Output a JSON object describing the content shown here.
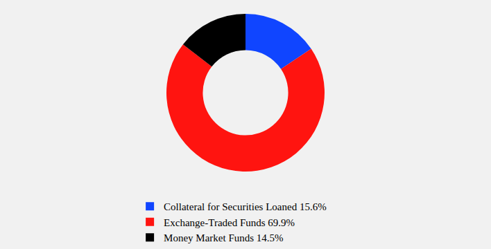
{
  "chart_data": {
    "type": "pie",
    "categories": [
      "Collateral for Securities Loaned 15.6%",
      "Exchange-Traded Funds 69.9%",
      "Money Market Funds 14.5%"
    ],
    "values": [
      15.6,
      69.9,
      14.5
    ],
    "colors": [
      "#1045ff",
      "#ff1410",
      "#000000"
    ],
    "legend": "bottom"
  }
}
